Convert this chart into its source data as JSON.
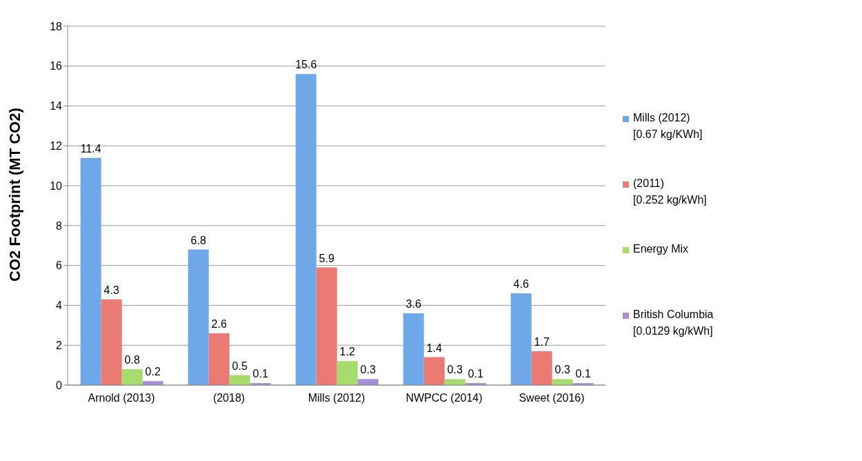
{
  "chart_data": {
    "type": "bar",
    "ylabel": "CO2 Footprint (MT CO2)",
    "categories": [
      "Arnold (2013)",
      "(2018)",
      "Mills (2012)",
      "NWPCC (2014)",
      "Sweet (2016)"
    ],
    "series": [
      {
        "name": "Mills (2012)\n[0.67 kg/KWh]",
        "color": "#6fa8e8",
        "values": [
          11.4,
          6.8,
          15.6,
          3.6,
          4.6
        ]
      },
      {
        "name": "(2011)\n[0.252 kg/kWh]",
        "color": "#ec7a74",
        "values": [
          4.3,
          2.6,
          5.9,
          1.4,
          1.7
        ]
      },
      {
        "name": "Energy Mix",
        "color": "#a6dc6e",
        "values": [
          0.8,
          0.5,
          1.2,
          0.3,
          0.3
        ]
      },
      {
        "name": "British Columbia\n[0.0129 kg/kWh]",
        "color": "#a58fd6",
        "values": [
          0.2,
          0.1,
          0.3,
          0.1,
          0.1
        ]
      }
    ],
    "ylim": [
      0,
      18
    ],
    "yticks": [
      0,
      2,
      4,
      6,
      8,
      10,
      12,
      14,
      16,
      18
    ],
    "grid": "y",
    "legend": "right",
    "data_labels": true
  }
}
